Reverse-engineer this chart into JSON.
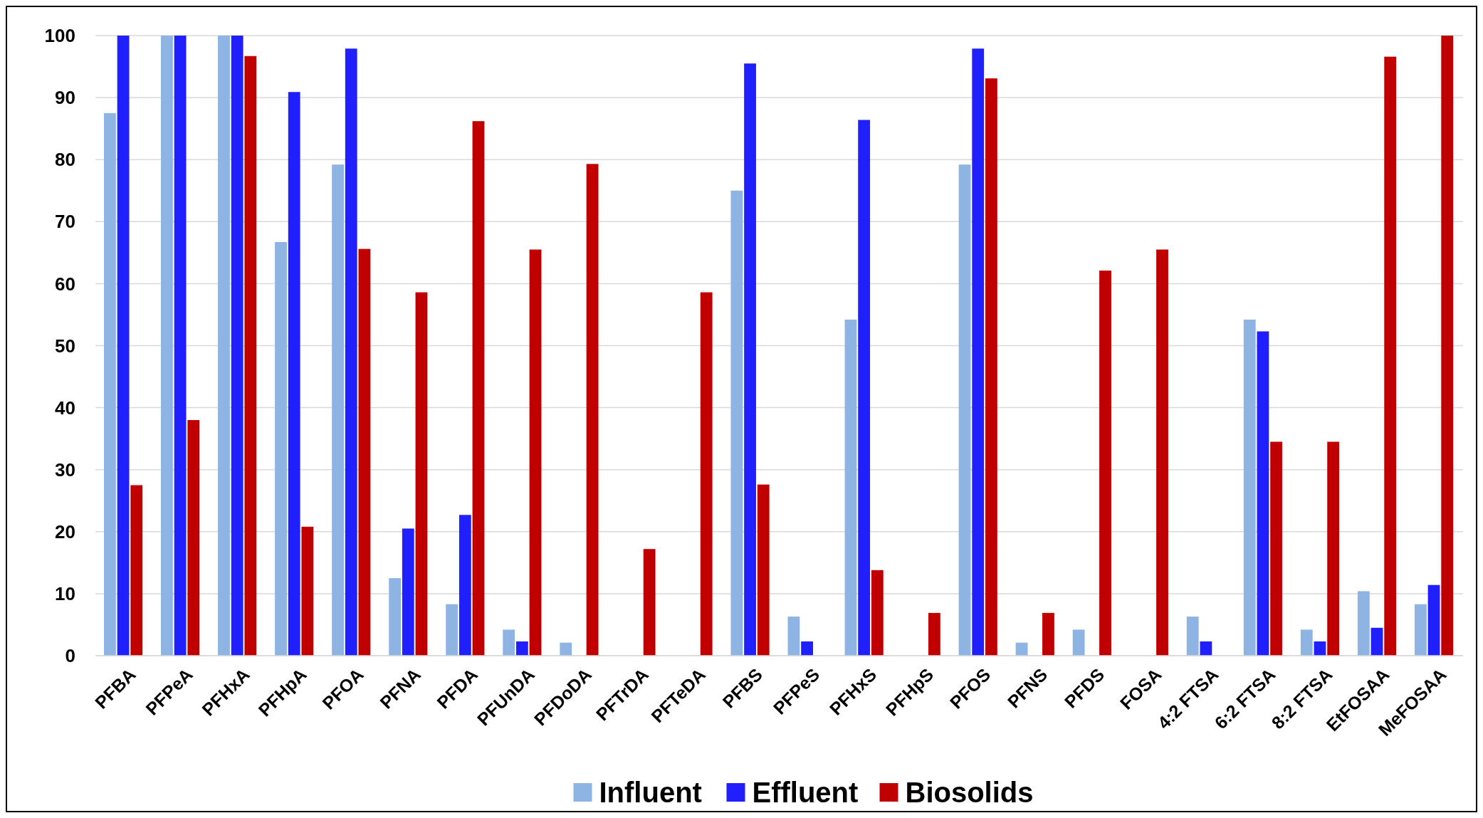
{
  "chart_data": {
    "type": "bar",
    "categories": [
      "PFBA",
      "PFPeA",
      "PFHxA",
      "PFHpA",
      "PFOA",
      "PFNA",
      "PFDA",
      "PFUnDA",
      "PFDoDA",
      "PFTrDA",
      "PFTeDA",
      "PFBS",
      "PFPeS",
      "PFHxS",
      "PFHpS",
      "PFOS",
      "PFNS",
      "PFDS",
      "FOSA",
      "4:2 FTSA",
      "6:2 FTSA",
      "8:2 FTSA",
      "EtFOSAA",
      "MeFOSAA"
    ],
    "series": [
      {
        "name": "Influent",
        "color": "#8db4e2",
        "values": [
          87.5,
          100,
          100,
          66.7,
          79.2,
          12.5,
          8.3,
          4.2,
          2.1,
          0,
          0,
          75,
          6.3,
          54.2,
          0,
          79.2,
          2.1,
          4.2,
          0,
          6.3,
          54.2,
          4.2,
          10.4,
          8.3
        ]
      },
      {
        "name": "Effluent",
        "color": "#2020ff",
        "values": [
          100,
          100,
          100,
          90.9,
          97.9,
          20.5,
          22.7,
          2.3,
          0,
          0,
          0,
          95.5,
          2.3,
          86.4,
          0,
          97.9,
          0,
          0,
          0,
          2.3,
          52.3,
          2.3,
          4.5,
          11.4
        ]
      },
      {
        "name": "Biosolids",
        "color": "#c00000",
        "values": [
          27.5,
          38,
          96.7,
          20.8,
          65.6,
          58.6,
          86.2,
          65.5,
          79.3,
          17.2,
          58.6,
          27.6,
          0,
          13.8,
          6.9,
          93.1,
          6.9,
          62.1,
          65.5,
          0,
          34.5,
          34.5,
          96.6,
          100
        ]
      }
    ],
    "ylim": [
      0,
      100
    ],
    "yticks": [
      0,
      10,
      20,
      30,
      40,
      50,
      60,
      70,
      80,
      90,
      100
    ],
    "grid": "y",
    "legend": "bottom"
  }
}
